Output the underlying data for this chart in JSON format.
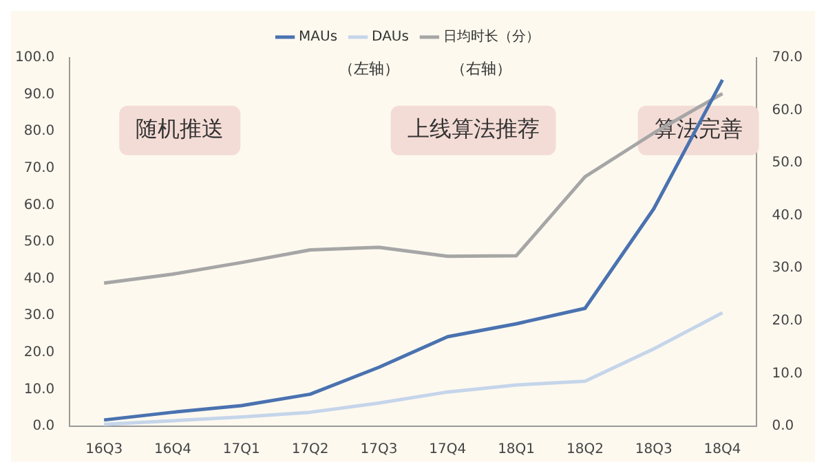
{
  "chart_data": {
    "type": "line",
    "categories": [
      "16Q3",
      "16Q4",
      "17Q1",
      "17Q2",
      "17Q3",
      "17Q4",
      "18Q1",
      "18Q2",
      "18Q3",
      "18Q4"
    ],
    "series": [
      {
        "name": "MAUs",
        "color": "#4a72b0",
        "values": [
          1.7,
          3.8,
          5.6,
          8.7,
          16,
          24.3,
          27.8,
          32,
          59,
          94
        ]
      },
      {
        "name": "DAUs",
        "color": "#c5d5ea",
        "values": [
          0.5,
          1.5,
          2.5,
          3.8,
          6.3,
          9.3,
          11.2,
          12.2,
          21,
          30.8
        ]
      },
      {
        "name": "日均时长（分）",
        "color": "#a6a6a6",
        "axis": "y2",
        "values": [
          27.2,
          28.9,
          31.1,
          33.5,
          34.0,
          32.3,
          32.4,
          47.4,
          55.7,
          63.2
        ]
      }
    ],
    "ylim": [
      0,
      100
    ],
    "yticks": [
      {
        "value": 0,
        "label": "0.0"
      },
      {
        "value": 10,
        "label": "10.0"
      },
      {
        "value": 20,
        "label": "20.0"
      },
      {
        "value": 30,
        "label": "30.0"
      },
      {
        "value": 40,
        "label": "40.0"
      },
      {
        "value": 50,
        "label": "50.0"
      },
      {
        "value": 60,
        "label": "60.0"
      },
      {
        "value": 70,
        "label": "70.0"
      },
      {
        "value": 80,
        "label": "80.0"
      },
      {
        "value": 90,
        "label": "90.0"
      },
      {
        "value": 100,
        "label": "100.0"
      }
    ],
    "y2lim": [
      0,
      70
    ],
    "y2ticks": [
      {
        "value": 0,
        "label": "0.0"
      },
      {
        "value": 10,
        "label": "10.0"
      },
      {
        "value": 20,
        "label": "20.0"
      },
      {
        "value": 30,
        "label": "30.0"
      },
      {
        "value": 40,
        "label": "40.0"
      },
      {
        "value": 50,
        "label": "50.0"
      },
      {
        "value": 60,
        "label": "60.0"
      },
      {
        "value": 70,
        "label": "70.0"
      }
    ],
    "annotations": [
      "（左轴）",
      "（右轴）",
      "随机推送",
      "上线算法推荐",
      "算法完善"
    ],
    "legend": "top",
    "grid": false,
    "marker": "none",
    "line_style": "solid"
  }
}
